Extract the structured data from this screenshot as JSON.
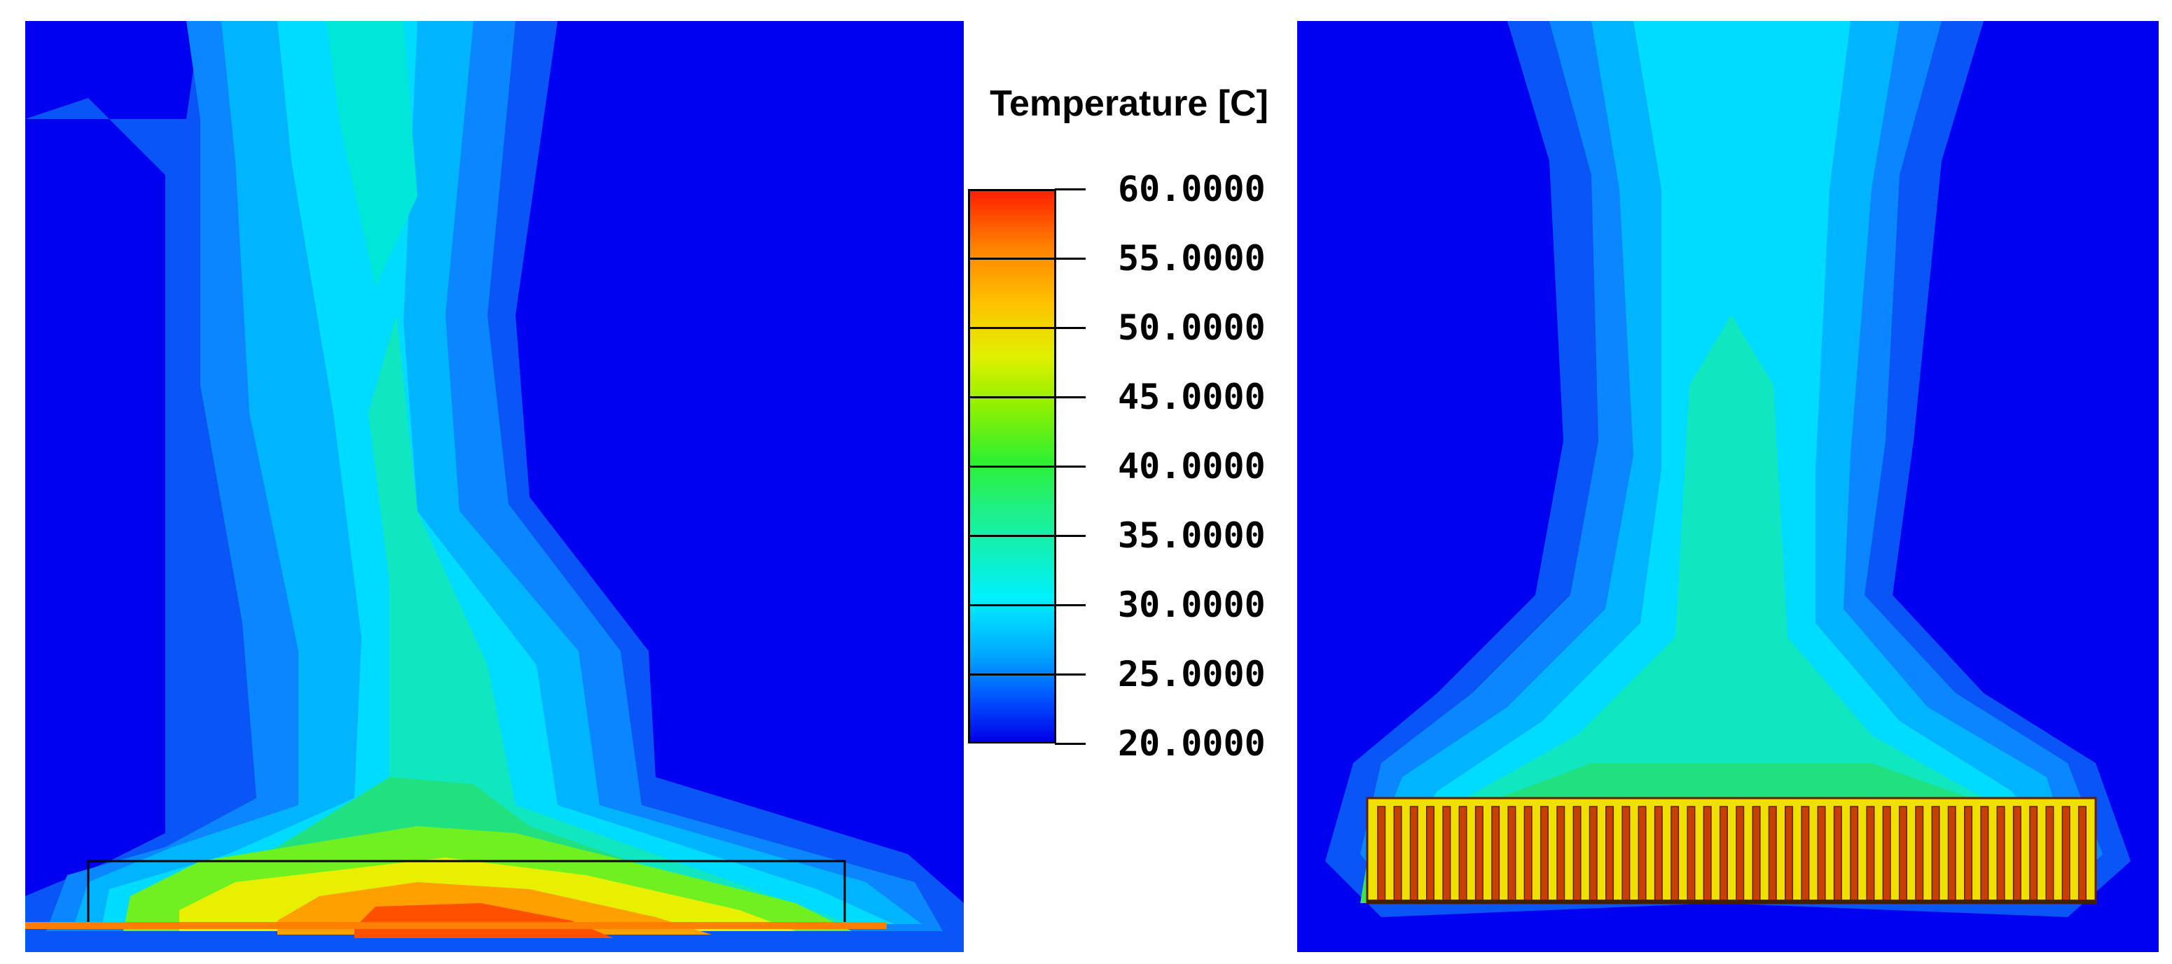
{
  "legend": {
    "title": "Temperature [C]",
    "labels": [
      "60.0000",
      "55.0000",
      "50.0000",
      "45.0000",
      "40.0000",
      "35.0000",
      "30.0000",
      "25.0000",
      "20.0000"
    ]
  },
  "colors": {
    "ambient": "#0000f0",
    "plume_outer": "#0a5af5",
    "plume_mid": "#00b4ff",
    "plume_core": "#00e6e6",
    "warm": "#20e080",
    "hot": "#f0f000",
    "hottest": "#ff6000",
    "fin": "#c04000"
  },
  "panels": [
    {
      "name": "flat-plate-heat-sink",
      "fin_count": 0
    },
    {
      "name": "finned-heat-sink",
      "fin_count": 44
    }
  ]
}
